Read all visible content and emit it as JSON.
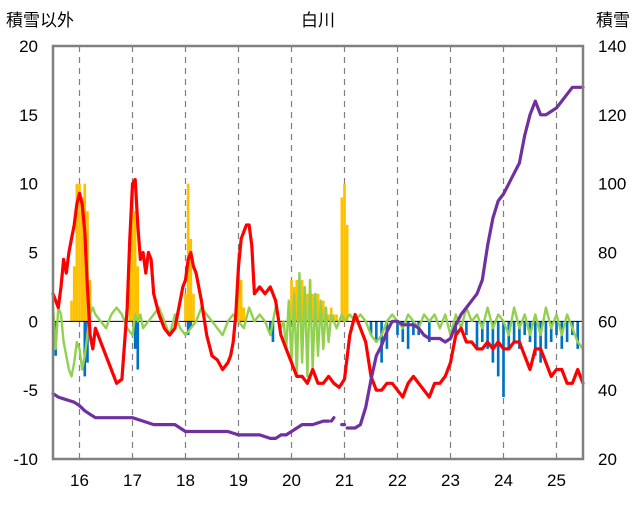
{
  "chart_data": {
    "type": "bar+line",
    "title": "白川",
    "ylabel_left": "積雪以外",
    "ylabel_right": "積雪",
    "ylim_left": [
      -10,
      20
    ],
    "ylim_right": [
      20,
      140
    ],
    "yticks_left": [
      -10,
      -5,
      0,
      5,
      10,
      15,
      20
    ],
    "yticks_right": [
      20,
      40,
      60,
      80,
      100,
      120,
      140
    ],
    "xlim": [
      15.5,
      25.5
    ],
    "xticks": [
      16,
      17,
      18,
      19,
      20,
      21,
      22,
      23,
      24,
      25
    ],
    "grid": "dashed vertical",
    "colors": {
      "precip": "#ffc000",
      "snowfall": "#0070c0",
      "temperature": "#ff0000",
      "sunshine": "#92d050",
      "snow_depth": "#7030a0",
      "zero_line": "#000000"
    },
    "bars_positive": {
      "x": [
        15.85,
        15.9,
        15.95,
        16.0,
        16.05,
        16.1,
        16.15,
        16.2,
        16.95,
        17.0,
        17.05,
        17.1,
        18.0,
        18.05,
        18.1,
        18.15,
        19.0,
        19.05,
        19.1,
        20.0,
        20.05,
        20.1,
        20.15,
        20.2,
        20.25,
        20.3,
        20.35,
        20.4,
        20.45,
        20.5,
        20.55,
        20.6,
        20.65,
        20.7,
        20.75,
        20.8,
        20.85,
        20.95,
        21.0,
        21.05
      ],
      "values": [
        1.5,
        4.0,
        10.0,
        10.0,
        9.0,
        10.0,
        8.0,
        3.0,
        6.0,
        10.0,
        8.0,
        4.0,
        2.0,
        10.0,
        6.0,
        2.0,
        5.0,
        3.0,
        1.0,
        3.0,
        2.5,
        3.0,
        2.0,
        3.0,
        2.5,
        2.0,
        3.0,
        2.0,
        1.5,
        2.0,
        1.0,
        1.5,
        1.0,
        0.5,
        1.0,
        0.5,
        0.5,
        9.0,
        10.0,
        7.0
      ]
    },
    "bars_negative": {
      "x": [
        15.55,
        16.1,
        16.15,
        17.05,
        17.1,
        18.05,
        18.1,
        19.6,
        19.65,
        21.5,
        21.6,
        21.7,
        21.8,
        22.0,
        22.1,
        22.2,
        22.3,
        22.4,
        22.6,
        23.1,
        23.3,
        23.5,
        23.6,
        23.7,
        23.8,
        23.9,
        24.0,
        24.1,
        24.2,
        24.3,
        24.4,
        24.5,
        24.6,
        24.7,
        24.8,
        24.9,
        25.0,
        25.1,
        25.2,
        25.3,
        25.4
      ],
      "values": [
        -2.5,
        -4.0,
        -3.0,
        -2.0,
        -3.5,
        -1.0,
        -0.5,
        -1.0,
        -1.5,
        -1.0,
        -1.5,
        -3.0,
        -2.0,
        -1.0,
        -1.5,
        -2.0,
        -1.0,
        -1.0,
        -1.5,
        -1.0,
        -1.0,
        -2.0,
        -1.5,
        -2.0,
        -3.0,
        -4.0,
        -5.5,
        -2.0,
        -1.5,
        -2.0,
        -1.0,
        -1.5,
        -2.5,
        -3.0,
        -2.0,
        -1.5,
        -1.0,
        -2.0,
        -1.5,
        -1.0,
        -2.0
      ]
    },
    "temperature": {
      "x": [
        15.5,
        15.55,
        15.6,
        15.65,
        15.7,
        15.75,
        15.8,
        15.85,
        15.9,
        15.95,
        16.0,
        16.05,
        16.1,
        16.15,
        16.2,
        16.25,
        16.3,
        16.4,
        16.5,
        16.6,
        16.7,
        16.8,
        16.9,
        16.95,
        17.0,
        17.05,
        17.1,
        17.15,
        17.2,
        17.25,
        17.3,
        17.35,
        17.4,
        17.5,
        17.6,
        17.7,
        17.8,
        17.9,
        17.95,
        18.0,
        18.05,
        18.1,
        18.15,
        18.2,
        18.3,
        18.4,
        18.5,
        18.6,
        18.7,
        18.8,
        18.85,
        18.9,
        18.95,
        19.0,
        19.05,
        19.1,
        19.15,
        19.2,
        19.25,
        19.3,
        19.4,
        19.5,
        19.6,
        19.7,
        19.8,
        19.9,
        20.0,
        20.1,
        20.2,
        20.3,
        20.4,
        20.5,
        20.6,
        20.7,
        20.8,
        20.9,
        21.0,
        21.1,
        21.2,
        21.3,
        21.4,
        21.5,
        21.6,
        21.7,
        21.8,
        21.9,
        22.0,
        22.1,
        22.2,
        22.3,
        22.4,
        22.5,
        22.6,
        22.7,
        22.8,
        22.9,
        23.0,
        23.1,
        23.2,
        23.3,
        23.4,
        23.5,
        23.6,
        23.7,
        23.8,
        23.9,
        24.0,
        24.1,
        24.2,
        24.3,
        24.4,
        24.5,
        24.6,
        24.7,
        24.8,
        24.9,
        25.0,
        25.1,
        25.2,
        25.3,
        25.4,
        25.5
      ],
      "values": [
        2.0,
        1.5,
        1.0,
        2.5,
        4.5,
        3.5,
        5.0,
        6.0,
        7.0,
        8.5,
        9.3,
        8.5,
        6.5,
        2.5,
        -1.0,
        -2.0,
        -0.5,
        -1.5,
        -2.5,
        -3.5,
        -4.5,
        -4.2,
        1.0,
        6.0,
        10.0,
        10.3,
        7.0,
        4.5,
        5.0,
        3.5,
        5.0,
        4.5,
        2.0,
        0.5,
        -0.5,
        -1.0,
        -0.5,
        1.5,
        2.5,
        3.0,
        4.5,
        5.0,
        4.0,
        3.5,
        1.5,
        -1.0,
        -2.5,
        -2.8,
        -3.5,
        -3.0,
        -2.5,
        -1.5,
        0.5,
        4.0,
        6.0,
        6.5,
        7.0,
        7.0,
        5.5,
        2.0,
        2.5,
        2.0,
        2.5,
        1.5,
        -1.0,
        -2.0,
        -3.0,
        -4.0,
        -4.0,
        -4.5,
        -3.5,
        -4.5,
        -4.5,
        -4.0,
        -4.5,
        -4.8,
        -4.2,
        -1.0,
        0.5,
        -0.5,
        -1.5,
        -4.0,
        -5.0,
        -5.0,
        -4.5,
        -4.5,
        -5.0,
        -5.5,
        -4.5,
        -4.0,
        -4.5,
        -5.0,
        -5.5,
        -4.5,
        -4.5,
        -4.0,
        -3.0,
        -1.0,
        -0.5,
        -1.5,
        -1.5,
        -2.0,
        -2.0,
        -1.5,
        -2.0,
        -1.5,
        -2.0,
        -2.0,
        -1.5,
        -1.5,
        -2.5,
        -3.5,
        -2.0,
        -2.0,
        -3.0,
        -4.0,
        -3.5,
        -3.5,
        -4.5,
        -4.5,
        -3.5,
        -4.5
      ],
      "name": ""
    },
    "sunshine": {
      "x": [
        15.5,
        15.55,
        15.6,
        15.65,
        15.7,
        15.75,
        15.8,
        15.85,
        15.9,
        15.95,
        16.0,
        16.05,
        16.1,
        16.15,
        16.2,
        16.25,
        16.3,
        16.4,
        16.5,
        16.6,
        16.7,
        16.8,
        16.9,
        17.0,
        17.05,
        17.1,
        17.15,
        17.2,
        17.3,
        17.4,
        17.5,
        17.6,
        17.7,
        17.8,
        17.9,
        18.0,
        18.1,
        18.2,
        18.3,
        18.4,
        18.5,
        18.6,
        18.7,
        18.8,
        18.9,
        19.0,
        19.1,
        19.2,
        19.3,
        19.4,
        19.5,
        19.6,
        19.7,
        19.8,
        19.85,
        19.9,
        19.95,
        20.0,
        20.05,
        20.1,
        20.15,
        20.2,
        20.25,
        20.3,
        20.35,
        20.4,
        20.45,
        20.5,
        20.55,
        20.6,
        20.65,
        20.7,
        20.75,
        20.8,
        20.85,
        20.9,
        20.95,
        21.0,
        21.1,
        21.2,
        21.3,
        21.4,
        21.5,
        21.6,
        21.7,
        21.8,
        21.9,
        22.0,
        22.1,
        22.2,
        22.3,
        22.4,
        22.5,
        22.6,
        22.7,
        22.8,
        22.9,
        23.0,
        23.1,
        23.2,
        23.3,
        23.4,
        23.5,
        23.6,
        23.7,
        23.8,
        23.9,
        24.0,
        24.1,
        24.2,
        24.3,
        24.4,
        24.5,
        24.6,
        24.7,
        24.8,
        24.9,
        25.0,
        25.1,
        25.2,
        25.3,
        25.4,
        25.5
      ],
      "values": [
        1.0,
        -2.0,
        1.0,
        0.5,
        -1.5,
        -2.5,
        -3.5,
        -4.0,
        -3.0,
        -1.5,
        -2.0,
        -3.5,
        -2.5,
        -1.0,
        0.5,
        1.0,
        0.5,
        0.0,
        -0.5,
        0.5,
        1.0,
        0.5,
        -0.5,
        -1.0,
        0.5,
        0.0,
        0.5,
        -0.5,
        0.0,
        0.5,
        1.0,
        0.0,
        -1.0,
        0.5,
        -0.5,
        -1.0,
        -0.5,
        0.0,
        1.0,
        0.5,
        0.0,
        -0.5,
        -1.0,
        0.0,
        0.5,
        0.0,
        -0.5,
        1.0,
        0.0,
        0.5,
        0.0,
        -1.0,
        1.0,
        -0.5,
        0.0,
        -2.0,
        1.5,
        -3.0,
        2.0,
        -4.0,
        3.5,
        -3.0,
        2.5,
        -4.0,
        3.0,
        -3.5,
        2.0,
        -2.5,
        1.5,
        -2.0,
        1.0,
        -1.5,
        0.5,
        0.0,
        -0.5,
        0.0,
        0.5,
        0.0,
        0.5,
        0.0,
        0.5,
        0.0,
        -1.0,
        -1.5,
        -1.0,
        0.0,
        0.5,
        0.0,
        -0.5,
        0.5,
        0.0,
        -0.5,
        0.5,
        0.0,
        0.5,
        -0.5,
        0.5,
        -1.0,
        0.5,
        -0.5,
        1.0,
        0.0,
        0.5,
        -0.5,
        1.0,
        -0.5,
        0.5,
        0.0,
        -1.0,
        1.0,
        -0.5,
        0.5,
        -1.0,
        0.5,
        -1.0,
        1.0,
        -0.5,
        0.5,
        -1.0,
        0.5,
        -0.5,
        -1.5,
        -2.0
      ],
      "name": ""
    },
    "snow_depth": {
      "segments": [
        {
          "x": [
            15.5,
            15.6,
            15.7,
            15.8,
            15.9,
            16.0,
            16.1,
            16.2,
            16.3,
            16.4,
            16.6,
            16.8,
            17.0,
            17.2,
            17.4,
            17.6,
            17.8,
            18.0,
            18.2,
            18.4,
            18.6,
            18.8,
            19.0,
            19.2,
            19.4,
            19.6,
            19.7,
            19.8,
            19.9,
            20.0,
            20.2,
            20.4,
            20.6,
            20.7
          ],
          "values": [
            39,
            38,
            37.5,
            37,
            36.5,
            35.5,
            34,
            33,
            32,
            32,
            32,
            32,
            32,
            31,
            30,
            30,
            30,
            28,
            28,
            28,
            28,
            28,
            27,
            27,
            27,
            26,
            26,
            27,
            27,
            28,
            30,
            30,
            31,
            31
          ]
        },
        {
          "x": [
            20.75,
            20.8
          ],
          "values": [
            31,
            32
          ]
        },
        {
          "x": [
            20.95,
            21.0
          ],
          "values": [
            30,
            30
          ]
        },
        {
          "x": [
            21.05,
            21.1,
            21.2,
            21.3,
            21.4,
            21.5,
            21.6,
            21.7,
            21.8,
            21.9,
            22.0,
            22.1,
            22.2,
            22.3,
            22.4,
            22.5,
            22.6,
            22.7,
            22.8,
            22.9,
            23.0,
            23.1,
            23.2,
            23.3,
            23.4,
            23.5,
            23.6,
            23.7,
            23.8,
            23.9,
            24.0,
            24.1,
            24.2,
            24.3,
            24.4,
            24.5,
            24.6,
            24.7,
            24.8,
            24.9,
            25.0,
            25.1,
            25.2,
            25.3,
            25.4,
            25.5
          ],
          "values": [
            29,
            29,
            29,
            30,
            35,
            43,
            50,
            53,
            57,
            60,
            60,
            59,
            59,
            59,
            58,
            56,
            55,
            55,
            55,
            54,
            55,
            59,
            62,
            64,
            66,
            68,
            72,
            82,
            90,
            95,
            97,
            100,
            103,
            106,
            114,
            120,
            124,
            120,
            120,
            121,
            122,
            124,
            126,
            128,
            128,
            128
          ]
        }
      ],
      "name": ""
    }
  }
}
